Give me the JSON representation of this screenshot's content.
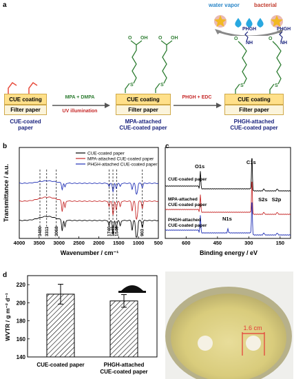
{
  "panel_labels": {
    "a": "a",
    "b": "b",
    "c": "c",
    "d": "d",
    "e": "e"
  },
  "scheme": {
    "layer_coating": "CUE coating",
    "layer_filter": "Filter paper",
    "stage1_caption_l1": "CUE-coated",
    "stage1_caption_l2": "paper",
    "step1_top": "MPA + DMPA",
    "step1_bottom": "UV illumination",
    "stage2_caption_l1": "MPA-attached",
    "stage2_caption_l2": "CUE-coated paper",
    "step2_top": "PHGH + EDC",
    "stage3_caption_l1": "PHGH-attached",
    "stage3_caption_l2": "CUE-coated  paper",
    "water_vapor": "water vapor",
    "bacterial": "bacterial",
    "phgh_label": "PHGH",
    "atom_S": "S",
    "atom_O": "O",
    "atom_OH": "OH",
    "atom_NH": "NH",
    "colors": {
      "green": "#2e7d32",
      "red": "#c62828",
      "blue": "#1a237e",
      "coating": "#ffe08a",
      "drop": "#29a8e0",
      "star": "#f2b824"
    }
  },
  "chart_data": [
    {
      "type": "line",
      "panel": "b",
      "xlabel": "Wavenumber / cm⁻¹",
      "ylabel": "Transmittance / a.u.",
      "xlim": [
        4000,
        500
      ],
      "xticks": [
        4000,
        3500,
        3000,
        2500,
        2000,
        1500,
        1000,
        500
      ],
      "series": [
        {
          "name": "CUE-coated paper",
          "color": "#000000"
        },
        {
          "name": "MPA-attached CUE-coated paper",
          "color": "#c62828"
        },
        {
          "name": "PHGH-attached CUE-coated paper",
          "color": "#1f2fb5"
        }
      ],
      "annotations": [
        "3480",
        "3311",
        "3068",
        "1740",
        "1643",
        "1546",
        "903"
      ],
      "legend": "top-right"
    },
    {
      "type": "line",
      "panel": "c",
      "xlabel": "Binding energy / eV",
      "xlim": [
        700,
        100
      ],
      "xticks": [
        600,
        450,
        300,
        150
      ],
      "series": [
        {
          "name": "CUE-coated paper",
          "color": "#000000"
        },
        {
          "name": "MPA-attached CUE-coated paper",
          "color": "#c62828"
        },
        {
          "name": "PHGH-attached CUE-coated paper",
          "color": "#1f2fb5"
        }
      ],
      "series_labels": [
        "CUE-coated paper",
        "MPA-attached",
        "CUE-coated paper",
        "PHGH-attached",
        "CUE-coated paper"
      ],
      "annotations": [
        "O1s",
        "C1s",
        "N1s",
        "S2s",
        "S2p"
      ]
    },
    {
      "type": "bar",
      "panel": "d",
      "categories": [
        "CUE-coated paper",
        "PHGH-attached CUE-coated paper"
      ],
      "category_lines": [
        [
          "CUE-coated paper"
        ],
        [
          "PHGH-attached",
          "CUE-coated paper"
        ]
      ],
      "values": [
        209.5,
        202
      ],
      "errors": [
        11,
        7
      ],
      "ylabel": "WVTR / g m⁻² d⁻¹",
      "ylim": [
        140,
        230
      ],
      "yticks": [
        140,
        160,
        180,
        200,
        220
      ]
    }
  ],
  "photo": {
    "scale_label": "1.6 cm"
  }
}
